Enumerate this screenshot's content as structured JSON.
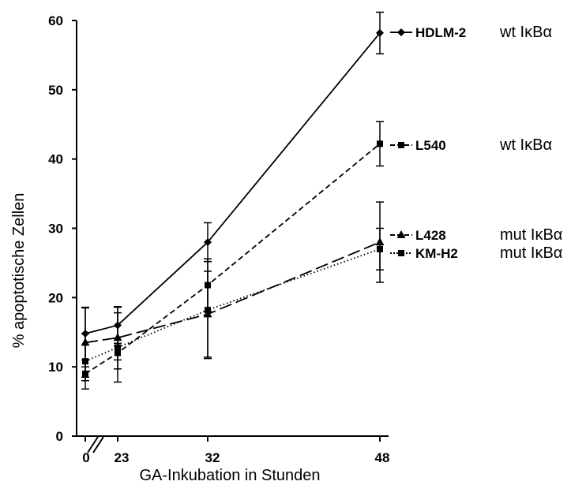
{
  "chart_data": {
    "type": "line",
    "xlabel": "GA-Inkubation in Stunden",
    "ylabel": "% apoptotische Zellen",
    "ylim": [
      0,
      60
    ],
    "yticks": [
      "0",
      "10",
      "20",
      "30",
      "40",
      "50",
      "60"
    ],
    "x": [
      "0",
      "23",
      "32",
      "48"
    ],
    "axis_break": "between 0 and 23",
    "grid": false,
    "legend": "right, inline labels",
    "series": [
      {
        "name": "HDLM-2",
        "type_label": "wt IκBα",
        "marker": "diamond",
        "line_style": "solid",
        "values": [
          14.8,
          16.0,
          28.0,
          58.2
        ],
        "errors": [
          3.8,
          2.6,
          2.8,
          3.0
        ]
      },
      {
        "name": "L540",
        "type_label": "wt IκBα",
        "marker": "square",
        "line_style": "dashed",
        "values": [
          9.0,
          12.0,
          21.8,
          42.2
        ],
        "errors": [
          1.0,
          1.0,
          3.8,
          3.2
        ]
      },
      {
        "name": "L428",
        "type_label": "mut IκBα",
        "marker": "triangle",
        "line_style": "long-dash",
        "values": [
          13.5,
          14.2,
          17.6,
          28.0
        ],
        "errors": [
          5.0,
          4.5,
          6.2,
          5.8
        ]
      },
      {
        "name": "KM-H2",
        "type_label": "mut IκBα",
        "marker": "square",
        "line_style": "dotted",
        "values": [
          10.8,
          12.8,
          18.2,
          27.0
        ],
        "errors": [
          4.0,
          5.0,
          7.0,
          3.0
        ]
      }
    ]
  }
}
